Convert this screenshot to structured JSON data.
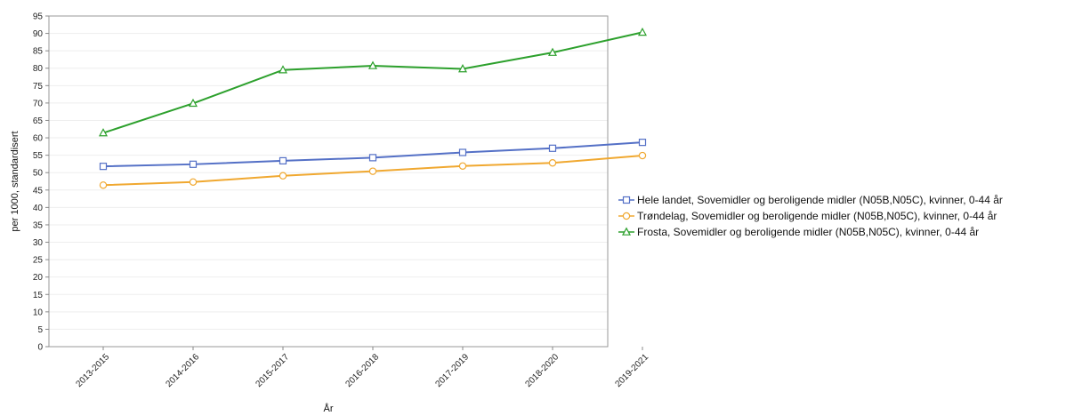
{
  "chart_data": {
    "type": "line",
    "categories": [
      "2013-2015",
      "2014-2016",
      "2015-2017",
      "2016-2018",
      "2017-2019",
      "2018-2020",
      "2019-2021"
    ],
    "series": [
      {
        "name": "Hele landet, Sovemidler og beroligende midler (N05B,N05C), kvinner, 0-44 år",
        "values": [
          51.8,
          52.4,
          53.4,
          54.3,
          55.8,
          57.0,
          58.7
        ],
        "color": "#5470c6",
        "marker": "square"
      },
      {
        "name": "Trøndelag, Sovemidler og beroligende midler (N05B,N05C), kvinner, 0-44 år",
        "values": [
          46.4,
          47.3,
          49.1,
          50.4,
          51.9,
          52.8,
          54.9
        ],
        "color": "#f0a830",
        "marker": "circle"
      },
      {
        "name": "Frosta, Sovemidler og beroligende midler (N05B,N05C), kvinner, 0-44 år",
        "values": [
          61.4,
          69.9,
          79.5,
          80.7,
          79.8,
          84.5,
          90.3
        ],
        "color": "#2ca02c",
        "marker": "triangle"
      }
    ],
    "xlabel": "År",
    "ylabel": "per 1000, standardisert",
    "ylim": [
      0,
      95
    ],
    "yticks": [
      0,
      5,
      10,
      15,
      20,
      25,
      30,
      35,
      40,
      45,
      50,
      55,
      60,
      65,
      70,
      75,
      80,
      85,
      90,
      95
    ],
    "grid": true,
    "legend_position": "right"
  }
}
